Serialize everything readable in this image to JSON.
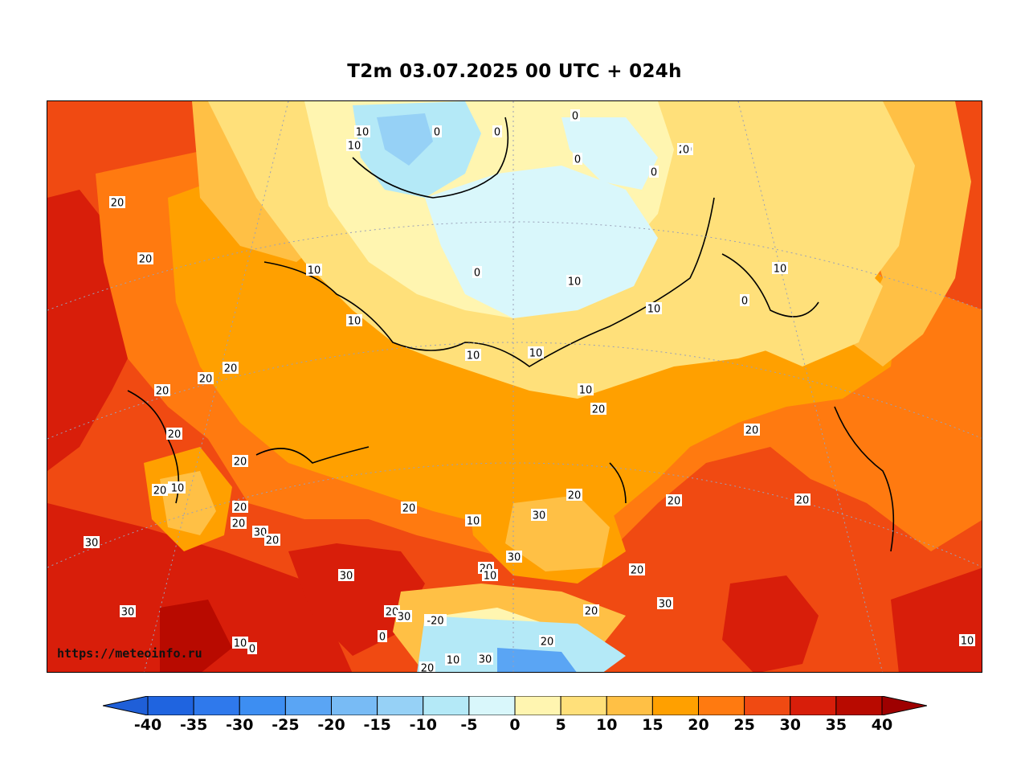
{
  "title": "T2m 03.07.2025 00 UTC + 024h",
  "watermark": "https://meteoinfo.ru",
  "colorbar": {
    "ticks": [
      "-40",
      "-35",
      "-30",
      "-25",
      "-20",
      "-15",
      "-10",
      "-5",
      "0",
      "5",
      "10",
      "15",
      "20",
      "25",
      "30",
      "35",
      "40"
    ],
    "under_color": "#1f5fd8",
    "over_color": "#9e0000",
    "colors": [
      "#1f64e0",
      "#2f79ec",
      "#3d8ef2",
      "#5aa5f4",
      "#78bbf5",
      "#96d1f6",
      "#b4e9f7",
      "#d9f7fb",
      "#fff5b0",
      "#ffe07a",
      "#ffc045",
      "#ffa000",
      "#ff7a10",
      "#f04a12",
      "#d81e0a",
      "#b80a00"
    ]
  },
  "contour_labels": [
    {
      "text": "20"
    },
    {
      "text": "20"
    },
    {
      "text": "10"
    },
    {
      "text": "0"
    },
    {
      "text": "10"
    },
    {
      "text": "0"
    },
    {
      "text": "0"
    },
    {
      "text": "0"
    },
    {
      "text": "0"
    },
    {
      "text": "20"
    },
    {
      "text": "0"
    },
    {
      "text": "10"
    },
    {
      "text": "10"
    },
    {
      "text": "0"
    },
    {
      "text": "0"
    },
    {
      "text": "10"
    },
    {
      "text": "10"
    },
    {
      "text": "10"
    },
    {
      "text": "10"
    },
    {
      "text": "10"
    },
    {
      "text": "10"
    },
    {
      "text": "20"
    },
    {
      "text": "20"
    },
    {
      "text": "20"
    },
    {
      "text": "20"
    },
    {
      "text": "20"
    },
    {
      "text": "10"
    },
    {
      "text": "20"
    },
    {
      "text": "20"
    },
    {
      "text": "10"
    },
    {
      "text": "20"
    },
    {
      "text": "20"
    },
    {
      "text": "10"
    },
    {
      "text": "20"
    },
    {
      "text": "30"
    },
    {
      "text": "30"
    },
    {
      "text": "20"
    },
    {
      "text": "10"
    },
    {
      "text": "20"
    },
    {
      "text": "20"
    },
    {
      "text": "20"
    },
    {
      "text": "20"
    },
    {
      "text": "30"
    },
    {
      "text": "20"
    },
    {
      "text": "30"
    },
    {
      "text": "20"
    },
    {
      "text": "30"
    },
    {
      "text": "20"
    },
    {
      "text": "30"
    },
    {
      "text": "10"
    },
    {
      "text": "0"
    },
    {
      "text": "30"
    },
    {
      "text": "0"
    },
    {
      "text": "-20"
    },
    {
      "text": "20"
    },
    {
      "text": "10"
    },
    {
      "text": "20"
    },
    {
      "text": "30"
    },
    {
      "text": "20"
    },
    {
      "text": "30"
    },
    {
      "text": "10"
    }
  ]
}
